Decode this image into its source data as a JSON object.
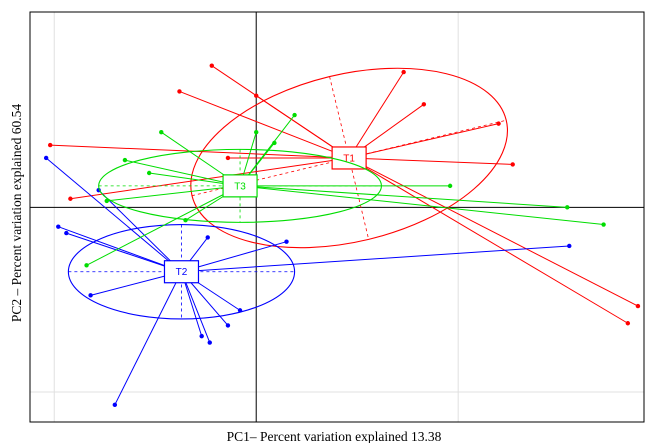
{
  "chart_data": {
    "type": "scatter",
    "subtype": "pca-spider-ellipse",
    "title": "",
    "xlabel": "PC1– Percent variation explained 13.38",
    "ylabel": "PC2 – Percent variation explained 60.54",
    "xlim": [
      -1.12,
      1.92
    ],
    "ylim": [
      -1.0,
      0.91
    ],
    "grid": true,
    "gridlines_x": [
      -1.0,
      1.0
    ],
    "gridlines_y": [
      -0.86
    ],
    "reference_lines": {
      "x": 0,
      "y": 0
    },
    "legend": "none",
    "series": [
      {
        "name": "T1",
        "color": "#ff0000",
        "centroid": [
          0.46,
          0.23
        ],
        "ellipse": {
          "rx": 0.8,
          "ry": 0.39,
          "angle_deg": -13.5
        },
        "points": [
          [
            -0.22,
            0.66
          ],
          [
            0.73,
            0.63
          ],
          [
            0.83,
            0.48
          ],
          [
            -0.38,
            0.54
          ],
          [
            0.0,
            0.52
          ],
          [
            1.2,
            0.39
          ],
          [
            -1.02,
            0.29
          ],
          [
            -0.14,
            0.23
          ],
          [
            1.27,
            0.2
          ],
          [
            -0.92,
            0.04
          ],
          [
            1.89,
            -0.46
          ],
          [
            1.84,
            -0.54
          ]
        ]
      },
      {
        "name": "T2",
        "color": "#0000ff",
        "centroid": [
          -0.37,
          -0.3
        ],
        "ellipse": {
          "rx": 0.56,
          "ry": 0.22,
          "angle_deg": 0
        },
        "points": [
          [
            -1.04,
            0.23
          ],
          [
            -0.78,
            0.08
          ],
          [
            -0.98,
            -0.09
          ],
          [
            -0.94,
            -0.12
          ],
          [
            -0.24,
            -0.14
          ],
          [
            0.15,
            -0.16
          ],
          [
            -0.82,
            -0.41
          ],
          [
            -0.08,
            -0.48
          ],
          [
            -0.14,
            -0.55
          ],
          [
            -0.27,
            -0.6
          ],
          [
            -0.23,
            -0.63
          ],
          [
            -0.7,
            -0.92
          ],
          [
            1.55,
            -0.18
          ]
        ]
      },
      {
        "name": "T3",
        "color": "#00dd00",
        "centroid": [
          -0.08,
          0.1
        ],
        "ellipse": {
          "rx": 0.7,
          "ry": 0.17,
          "angle_deg": 0
        },
        "points": [
          [
            0.19,
            0.43
          ],
          [
            -0.47,
            0.35
          ],
          [
            0.0,
            0.35
          ],
          [
            0.09,
            0.3
          ],
          [
            -0.65,
            0.22
          ],
          [
            -0.53,
            0.16
          ],
          [
            0.96,
            0.1
          ],
          [
            -0.74,
            0.03
          ],
          [
            1.54,
            0.0
          ],
          [
            1.72,
            -0.08
          ],
          [
            -0.35,
            -0.06
          ],
          [
            -0.84,
            -0.27
          ]
        ]
      }
    ]
  }
}
